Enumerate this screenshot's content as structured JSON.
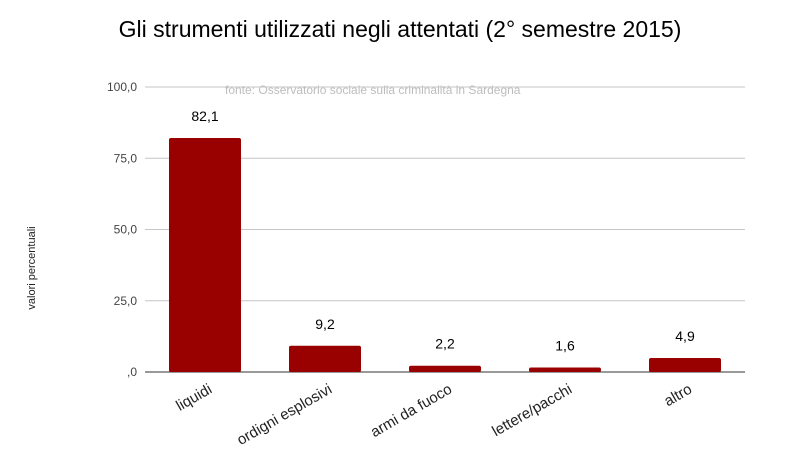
{
  "chart_data": {
    "type": "bar",
    "title": "Gli strumenti utilizzati negli attentati (2° semestre 2015)",
    "subtitle": "fonte: Osservatorio sociale sulla criminalità in Sardegna",
    "xlabel": "",
    "ylabel": "valori percentuali",
    "categories": [
      "liquidi",
      "ordigni esplosivi",
      "armi da fuoco",
      "lettere/pacchi",
      "altro"
    ],
    "values": [
      82.1,
      9.2,
      2.2,
      1.6,
      4.9
    ],
    "data_labels": [
      "82,1",
      "9,2",
      "2,2",
      "1,6",
      "4,9"
    ],
    "y_ticks": [
      0,
      25,
      50,
      75,
      100
    ],
    "y_tick_labels": [
      ",0",
      "25,0",
      "50,0",
      "75,0",
      "100,0"
    ],
    "ylim": [
      0,
      100
    ],
    "grid": true,
    "legend": "none",
    "bar_color": "#990000"
  }
}
